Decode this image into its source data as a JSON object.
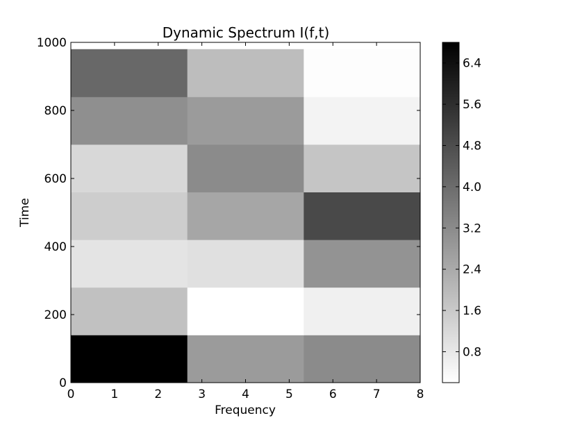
{
  "chart_data": {
    "type": "heatmap",
    "title": "Dynamic Spectrum I(f,t)",
    "xlabel": "Frequency",
    "ylabel": "Time",
    "xlim": [
      0,
      8
    ],
    "ylim": [
      0,
      1000
    ],
    "xticks": [
      "0",
      "1",
      "2",
      "3",
      "4",
      "5",
      "6",
      "7",
      "8"
    ],
    "yticks": [
      "0",
      "200",
      "400",
      "600",
      "800",
      "1000"
    ],
    "colormap": "gray_r",
    "vmin": 0.2,
    "vmax": 6.8,
    "colorbar_ticks": [
      "0.8",
      "1.6",
      "2.4",
      "3.2",
      "4.0",
      "4.8",
      "5.6",
      "6.4"
    ],
    "frequency_bins": [
      [
        0,
        2.667
      ],
      [
        2.667,
        5.333
      ],
      [
        5.333,
        8
      ]
    ],
    "time_bins": [
      [
        0,
        140
      ],
      [
        140,
        280
      ],
      [
        280,
        420
      ],
      [
        420,
        560
      ],
      [
        560,
        700
      ],
      [
        700,
        840
      ],
      [
        840,
        980
      ]
    ],
    "values": [
      [
        6.8,
        2.8,
        3.2
      ],
      [
        1.8,
        0.2,
        0.6
      ],
      [
        0.9,
        1.0,
        3.0
      ],
      [
        1.5,
        2.5,
        4.9
      ],
      [
        1.2,
        3.2,
        1.7
      ],
      [
        3.1,
        2.8,
        0.5
      ],
      [
        4.1,
        1.9,
        0.25
      ]
    ]
  }
}
